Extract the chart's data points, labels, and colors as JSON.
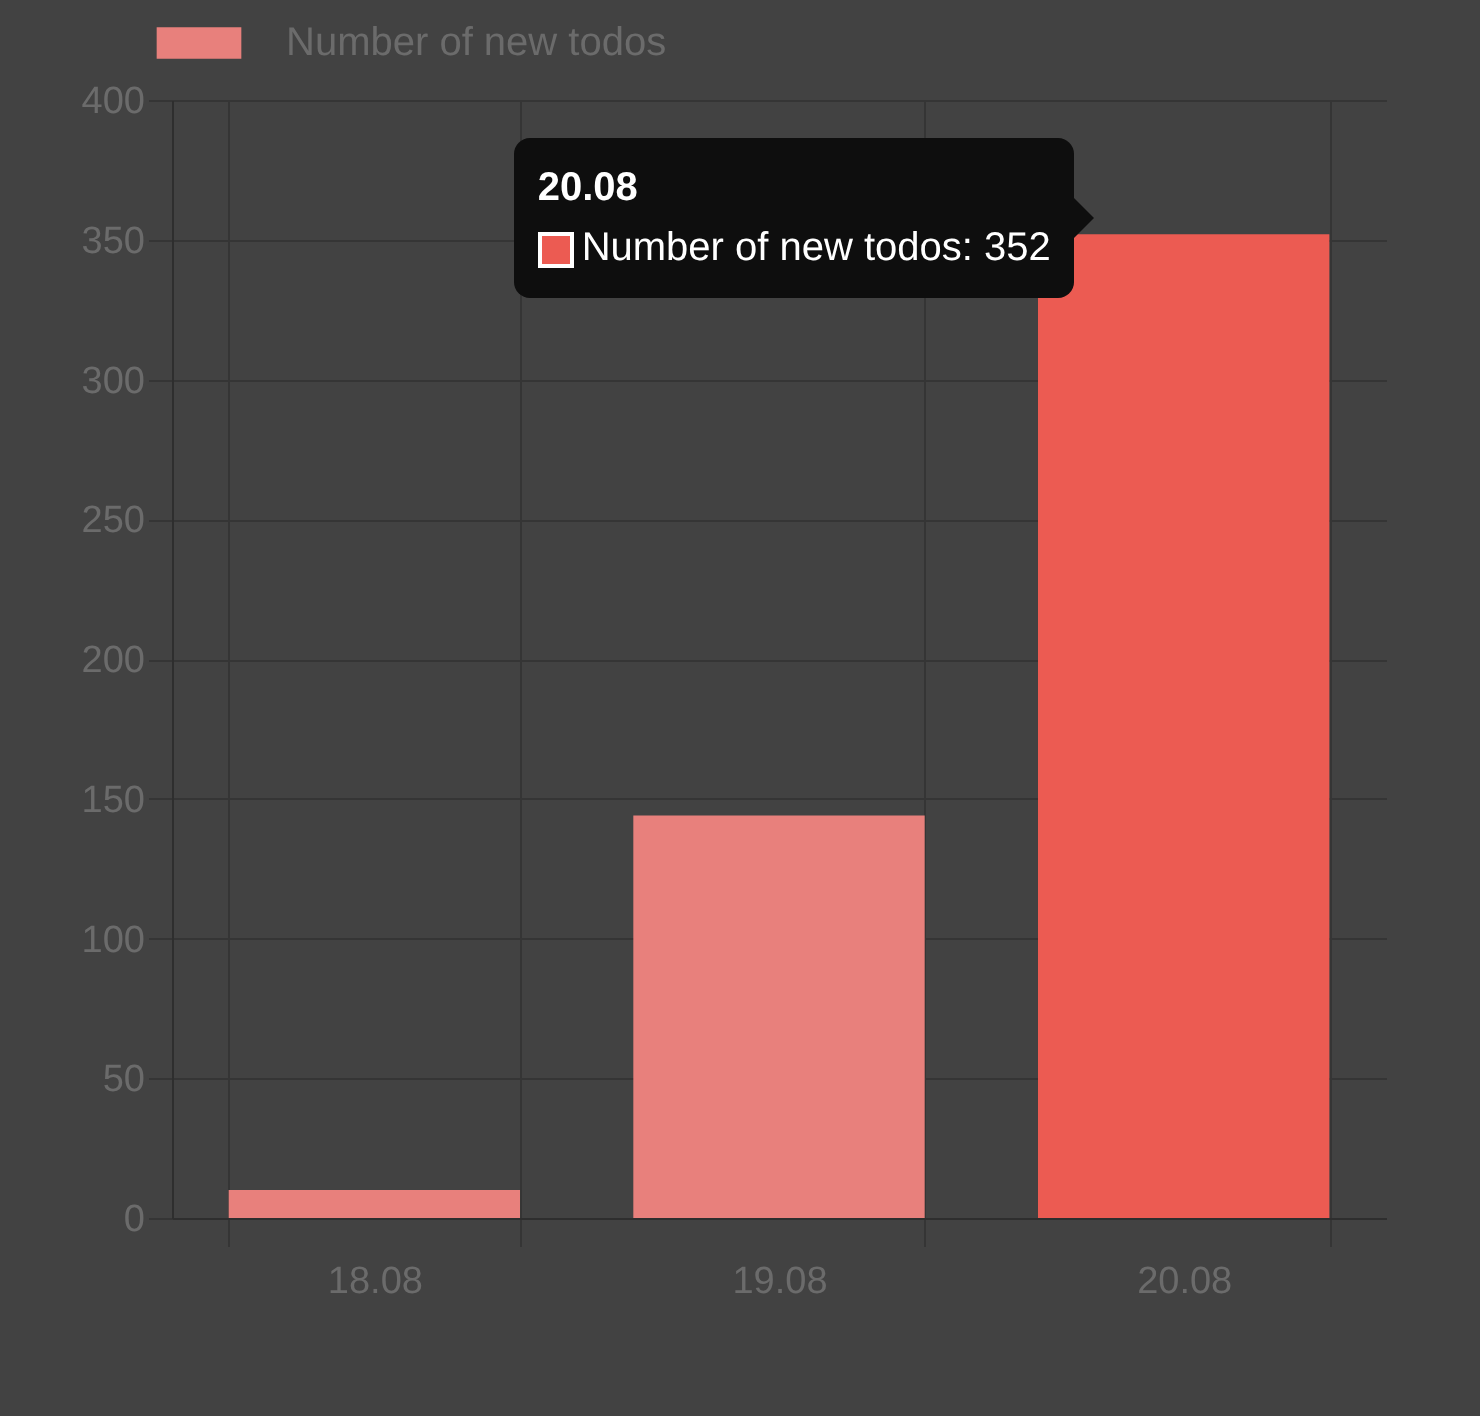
{
  "chart_data": {
    "type": "bar",
    "categories": [
      "18.08",
      "19.08",
      "20.08"
    ],
    "series": [
      {
        "name": "Number of new todos",
        "color": "#e8807c",
        "colors": [
          "#e8807c",
          "#e8807c",
          "#ec5b52"
        ],
        "values": [
          10,
          144,
          352
        ]
      }
    ],
    "ylim": [
      0,
      400
    ],
    "yticks": [
      0,
      50,
      100,
      150,
      200,
      250,
      300,
      350,
      400
    ],
    "grid": true,
    "legend": "top",
    "annotations": [
      "20.08",
      "Number of new todos: 352"
    ]
  }
}
